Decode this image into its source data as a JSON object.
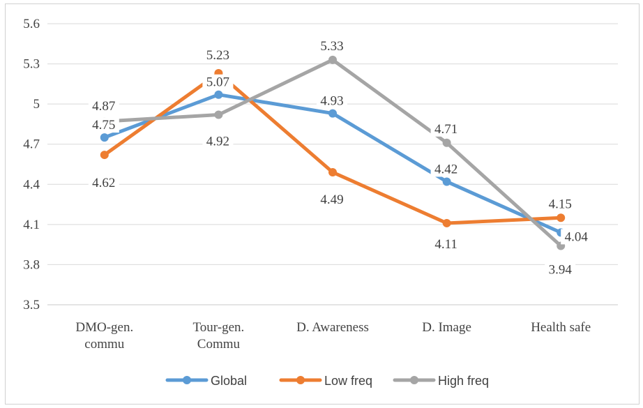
{
  "chart_data": {
    "type": "line",
    "categories": [
      [
        "DMO-gen.",
        "commu"
      ],
      [
        "Tour-gen.",
        "Commu"
      ],
      [
        "D. Awareness"
      ],
      [
        "D. Image"
      ],
      [
        "Health safe"
      ]
    ],
    "series": [
      {
        "name": "Global",
        "color": "#5b9bd5",
        "values": [
          4.75,
          5.07,
          4.93,
          4.42,
          4.04
        ]
      },
      {
        "name": "Low freq",
        "color": "#ed7d31",
        "values": [
          4.62,
          5.23,
          4.49,
          4.11,
          4.15
        ]
      },
      {
        "name": "High freq",
        "color": "#a5a5a5",
        "values": [
          4.87,
          4.92,
          5.33,
          4.71,
          3.94
        ]
      }
    ],
    "data_labels": [
      [
        "4.75",
        "5.07",
        "4.93",
        "4.42",
        "4.04"
      ],
      [
        "4.62",
        "5.23",
        "4.49",
        "4.11",
        "4.15"
      ],
      [
        "4.87",
        "4.92",
        "5.33",
        "4.71",
        "3.94"
      ]
    ],
    "yticks": [
      "3.5",
      "3.8",
      "4.1",
      "4.4",
      "4.7",
      "5",
      "5.3",
      "5.6"
    ],
    "ylim": [
      3.5,
      5.6
    ],
    "grid": true,
    "legend_position": "bottom",
    "title": "",
    "xlabel": "",
    "ylabel": ""
  }
}
